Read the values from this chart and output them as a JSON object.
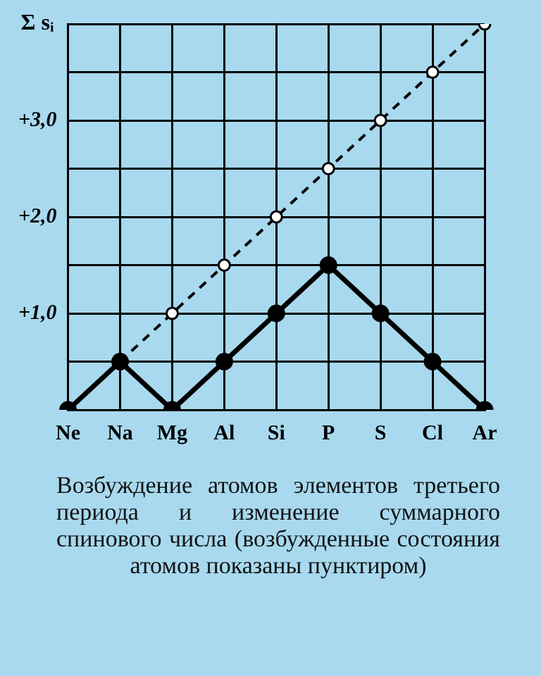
{
  "chart_data": {
    "type": "line",
    "ylabel": "Σ sᵢ",
    "categories": [
      "Ne",
      "Na",
      "Mg",
      "Al",
      "Si",
      "P",
      "S",
      "Cl",
      "Ar"
    ],
    "series": [
      {
        "color": "#000000",
        "values": [
          0,
          0.5,
          0,
          0.5,
          1,
          1.5,
          1,
          0.5,
          0
        ],
        "line_style": "solid"
      },
      {
        "color": "#000000",
        "values": [
          null,
          0.5,
          1,
          1.5,
          2,
          2.5,
          3,
          3.5,
          4
        ],
        "line_style": "dashed"
      }
    ],
    "ylim": [
      0,
      4
    ],
    "yticks": [
      {
        "value": 0,
        "label": null
      },
      {
        "value": 0.5,
        "label": null
      },
      {
        "value": 1,
        "label": "+1,0"
      },
      {
        "value": 1.5,
        "label": null
      },
      {
        "value": 2,
        "label": "+2,0"
      },
      {
        "value": 2.5,
        "label": null
      },
      {
        "value": 3,
        "label": "+3,0"
      },
      {
        "value": 3.5,
        "label": null
      },
      {
        "value": 4,
        "label": null
      }
    ],
    "grid": true,
    "marker": "circle",
    "legend": false,
    "annotations": [
      "Возбуждение атомов элементов третьего периода и изменение суммарного спинового числа (возбужденные состояния атомов показаны пунктиром)"
    ]
  }
}
